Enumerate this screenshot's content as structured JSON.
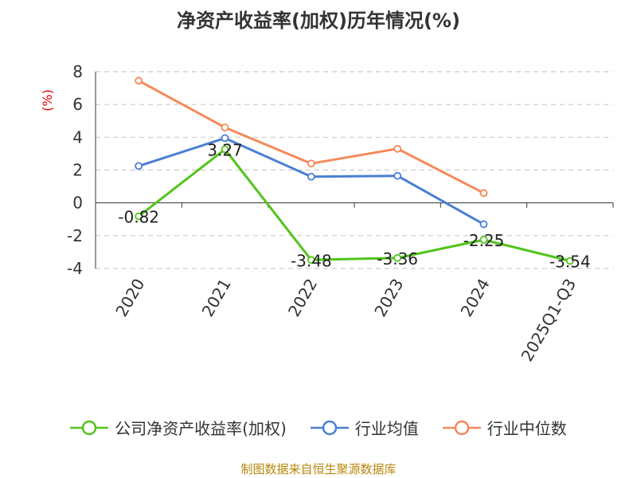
{
  "chart_data": {
    "type": "line",
    "title": "净资产收益率(加权)历年情况(%)",
    "ylabel": "(%)",
    "xlabel": "",
    "categories": [
      "2020",
      "2021",
      "2022",
      "2023",
      "2024",
      "2025Q1-Q3"
    ],
    "yticks": [
      "8",
      "6",
      "4",
      "2",
      "0",
      "-2",
      "-4"
    ],
    "ylim": [
      -4,
      8
    ],
    "grid": true,
    "legend_position": "bottom",
    "series": [
      {
        "name": "公司净资产收益率(加权)",
        "color": "#52c41a",
        "labels": [
          "-0.82",
          "3.27",
          "-3.48",
          "-3.36",
          "-2.25",
          "-3.54"
        ],
        "values": [
          -0.82,
          3.27,
          -3.48,
          -3.36,
          -2.25,
          -3.54
        ]
      },
      {
        "name": "行业均值",
        "color": "#4a7fd4",
        "values": [
          2.25,
          3.95,
          1.6,
          1.65,
          -1.3,
          null
        ]
      },
      {
        "name": "行业中位数",
        "color": "#f5895a",
        "values": [
          7.45,
          4.6,
          2.4,
          3.3,
          0.6,
          null
        ]
      }
    ]
  },
  "source": "制图数据来自恒生聚源数据库"
}
